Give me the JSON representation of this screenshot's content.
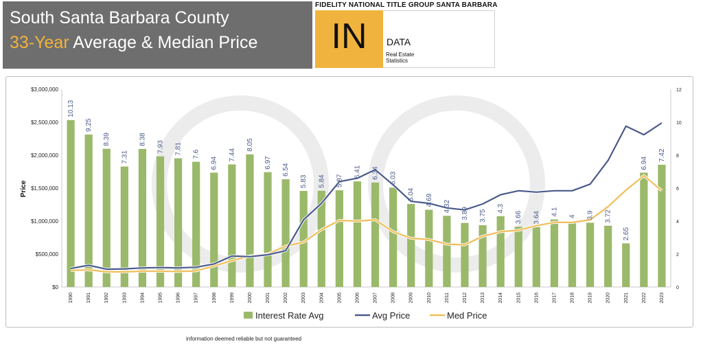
{
  "header": {
    "title_line1": "South Santa Barbara County",
    "title_line2_highlight": "33-Year",
    "title_line2_rest": "Average & Median Price",
    "brand_top": "FIDELITY NATIONAL TITLE GROUP SANTA BARBARA",
    "brand_in": "IN",
    "brand_data": "DATA",
    "brand_sub_1": "Real Estate",
    "brand_sub_2": "Statistics"
  },
  "footer": "information deemed reliable but not guaranteed",
  "colors": {
    "bar": "#9bb96a",
    "avg": "#4a5a8a",
    "med": "#f0be5a",
    "title_bg": "#6e6e6e",
    "accent": "#f2b33d"
  },
  "chart_data": {
    "type": "bar",
    "ylabel": "Price",
    "categories": [
      "1990",
      "1991",
      "1992",
      "1993",
      "1994",
      "1995",
      "1996",
      "1997",
      "1998",
      "1999",
      "2000",
      "2001",
      "2002",
      "2003",
      "2004",
      "2005",
      "2006",
      "2007",
      "2008",
      "2009",
      "2010",
      "2011",
      "2012",
      "2013",
      "2014",
      "2015",
      "2016",
      "2017",
      "2018",
      "2019",
      "2020",
      "2021",
      "2022",
      "2023"
    ],
    "ylim": [
      0,
      3000000
    ],
    "y2lim": [
      0,
      12
    ],
    "y_ticks": [
      "$0",
      "$500,000",
      "$1,000,000",
      "$1,500,000",
      "$2,000,000",
      "$2,500,000",
      "$3,000,000"
    ],
    "y2_ticks": [
      "0",
      "2",
      "4",
      "6",
      "8",
      "10",
      "12"
    ],
    "legend_position": "bottom",
    "series": [
      {
        "name": "Interest Rate Avg",
        "type": "bar",
        "axis": "right",
        "values": [
          10.13,
          9.25,
          8.39,
          7.31,
          8.38,
          7.93,
          7.81,
          7.6,
          6.94,
          7.44,
          8.05,
          6.97,
          6.54,
          5.83,
          5.84,
          5.87,
          6.41,
          6.34,
          6.03,
          5.04,
          4.69,
          4.32,
          3.89,
          3.75,
          4.3,
          3.66,
          3.64,
          4.1,
          4.0,
          3.9,
          3.72,
          2.65,
          6.94,
          7.42
        ],
        "labels": [
          "10.13",
          "9.25",
          "8.39",
          "7.31",
          "8.38",
          "7.93",
          "7.81",
          "7.6",
          "6.94",
          "7.44",
          "8.05",
          "6.97",
          "6.54",
          "5.83",
          "5.84",
          "5.87",
          "6.41",
          "6.34",
          "6.03",
          "5.04",
          "4.69",
          "4.32",
          "3.89",
          "3.75",
          "4.3",
          "3.66",
          "3.64",
          "4.1",
          "4",
          "3.9",
          "3.72",
          "2.65",
          "6.94",
          "7.42"
        ]
      },
      {
        "name": "Avg Price",
        "type": "line",
        "axis": "left",
        "values": [
          280000,
          330000,
          270000,
          275000,
          290000,
          295000,
          290000,
          300000,
          350000,
          470000,
          460000,
          490000,
          550000,
          1020000,
          1270000,
          1600000,
          1650000,
          1780000,
          1550000,
          1300000,
          1270000,
          1200000,
          1170000,
          1260000,
          1400000,
          1460000,
          1440000,
          1460000,
          1460000,
          1560000,
          1920000,
          2440000,
          2310000,
          2490000
        ]
      },
      {
        "name": "Med Price",
        "type": "line",
        "axis": "left",
        "values": [
          250000,
          260000,
          230000,
          230000,
          240000,
          240000,
          235000,
          245000,
          320000,
          400000,
          470000,
          500000,
          620000,
          680000,
          870000,
          1010000,
          1000000,
          1020000,
          840000,
          740000,
          720000,
          650000,
          640000,
          770000,
          840000,
          860000,
          930000,
          980000,
          980000,
          1020000,
          1220000,
          1470000,
          1690000,
          1460000
        ]
      }
    ]
  }
}
